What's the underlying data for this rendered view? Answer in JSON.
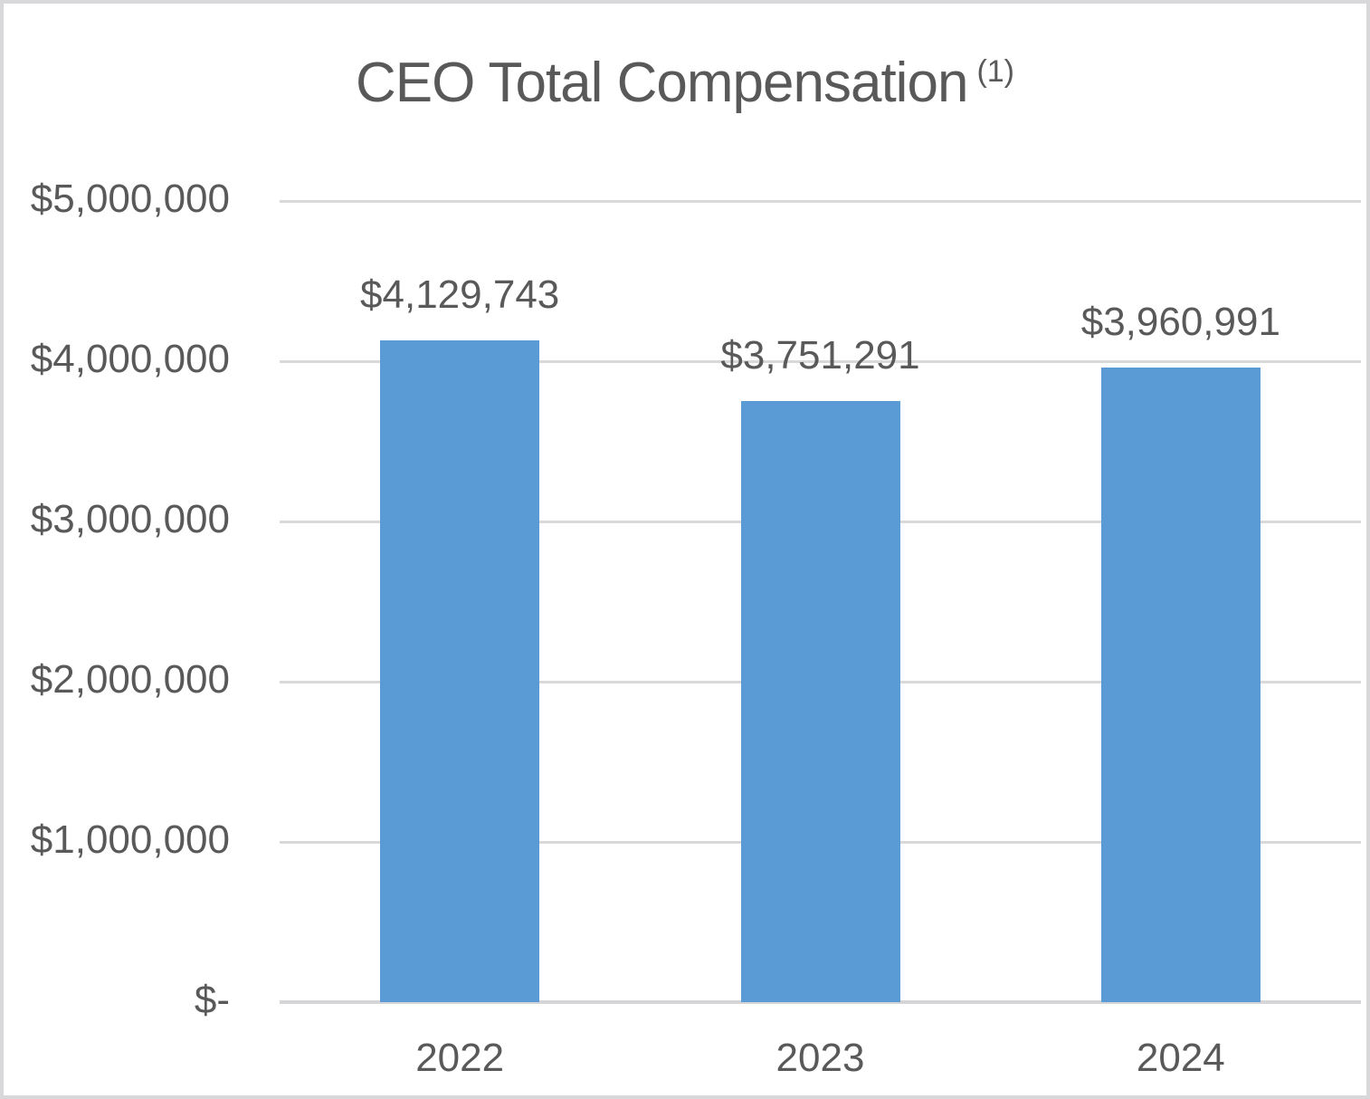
{
  "chart_data": {
    "type": "bar",
    "title": "CEO Total Compensation",
    "title_superscript": "(1)",
    "categories": [
      "2022",
      "2023",
      "2024"
    ],
    "values": [
      4129743,
      3751291,
      3960991
    ],
    "data_labels": [
      "$4,129,743",
      "$3,751,291",
      "$3,960,991"
    ],
    "y_tick_labels": [
      "$-",
      "$1,000,000",
      "$2,000,000",
      "$3,000,000",
      "$4,000,000",
      "$5,000,000"
    ],
    "y_tick_values": [
      0,
      1000000,
      2000000,
      3000000,
      4000000,
      5000000
    ],
    "ylim": [
      0,
      5000000
    ],
    "xlabel": "",
    "ylabel": "",
    "grid": "horizontal",
    "legend_position": "none",
    "bar_color": "#5b9bd5",
    "text_color": "#595959",
    "gridline_color": "#d9d9d9"
  }
}
